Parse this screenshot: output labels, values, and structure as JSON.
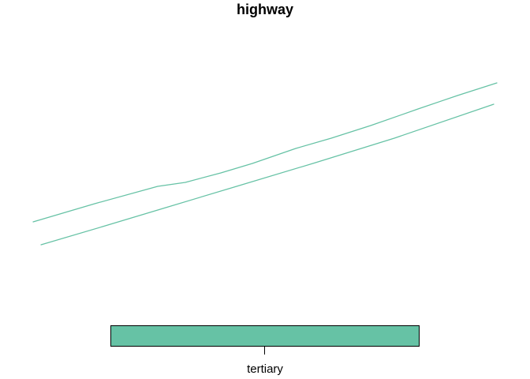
{
  "title": "highway",
  "colors": {
    "road": "#66c2a5",
    "legend_fill": "#66c2a5",
    "legend_border": "#000000"
  },
  "legend": {
    "label": "tertiary"
  }
}
